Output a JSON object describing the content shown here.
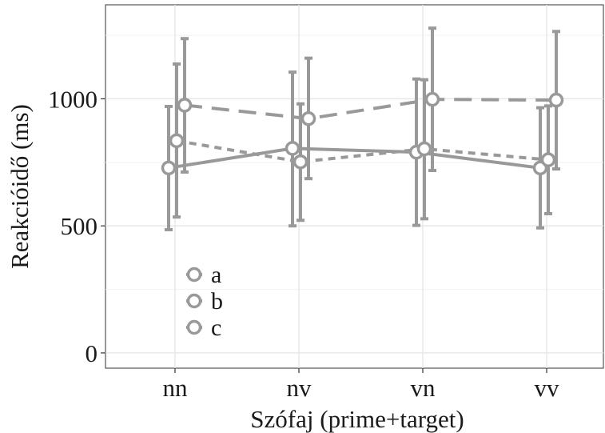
{
  "chart_data": {
    "type": "line",
    "title": "",
    "xlabel": "Szófaj (prime+target)",
    "ylabel": "Reakcióidő (ms)",
    "categories": [
      "nn",
      "nv",
      "vn",
      "vv"
    ],
    "ylim": [
      -60,
      1370
    ],
    "yticks": [
      0,
      500,
      1000
    ],
    "grid": true,
    "legend_position": "bottom-left",
    "series_color": "#999999",
    "series": [
      {
        "name": "a",
        "line_style": "solid",
        "values": [
          728,
          805,
          790,
          728
        ],
        "error_low": [
          485,
          500,
          502,
          492
        ],
        "error_high": [
          970,
          1105,
          1078,
          965
        ]
      },
      {
        "name": "b",
        "line_style": "dotted",
        "values": [
          835,
          752,
          803,
          760
        ],
        "error_low": [
          535,
          522,
          528,
          548
        ],
        "error_high": [
          1137,
          980,
          1075,
          972
        ]
      },
      {
        "name": "c",
        "line_style": "dashed",
        "values": [
          975,
          922,
          998,
          995
        ],
        "error_low": [
          712,
          686,
          718,
          724
        ],
        "error_high": [
          1237,
          1160,
          1278,
          1265
        ]
      }
    ]
  }
}
